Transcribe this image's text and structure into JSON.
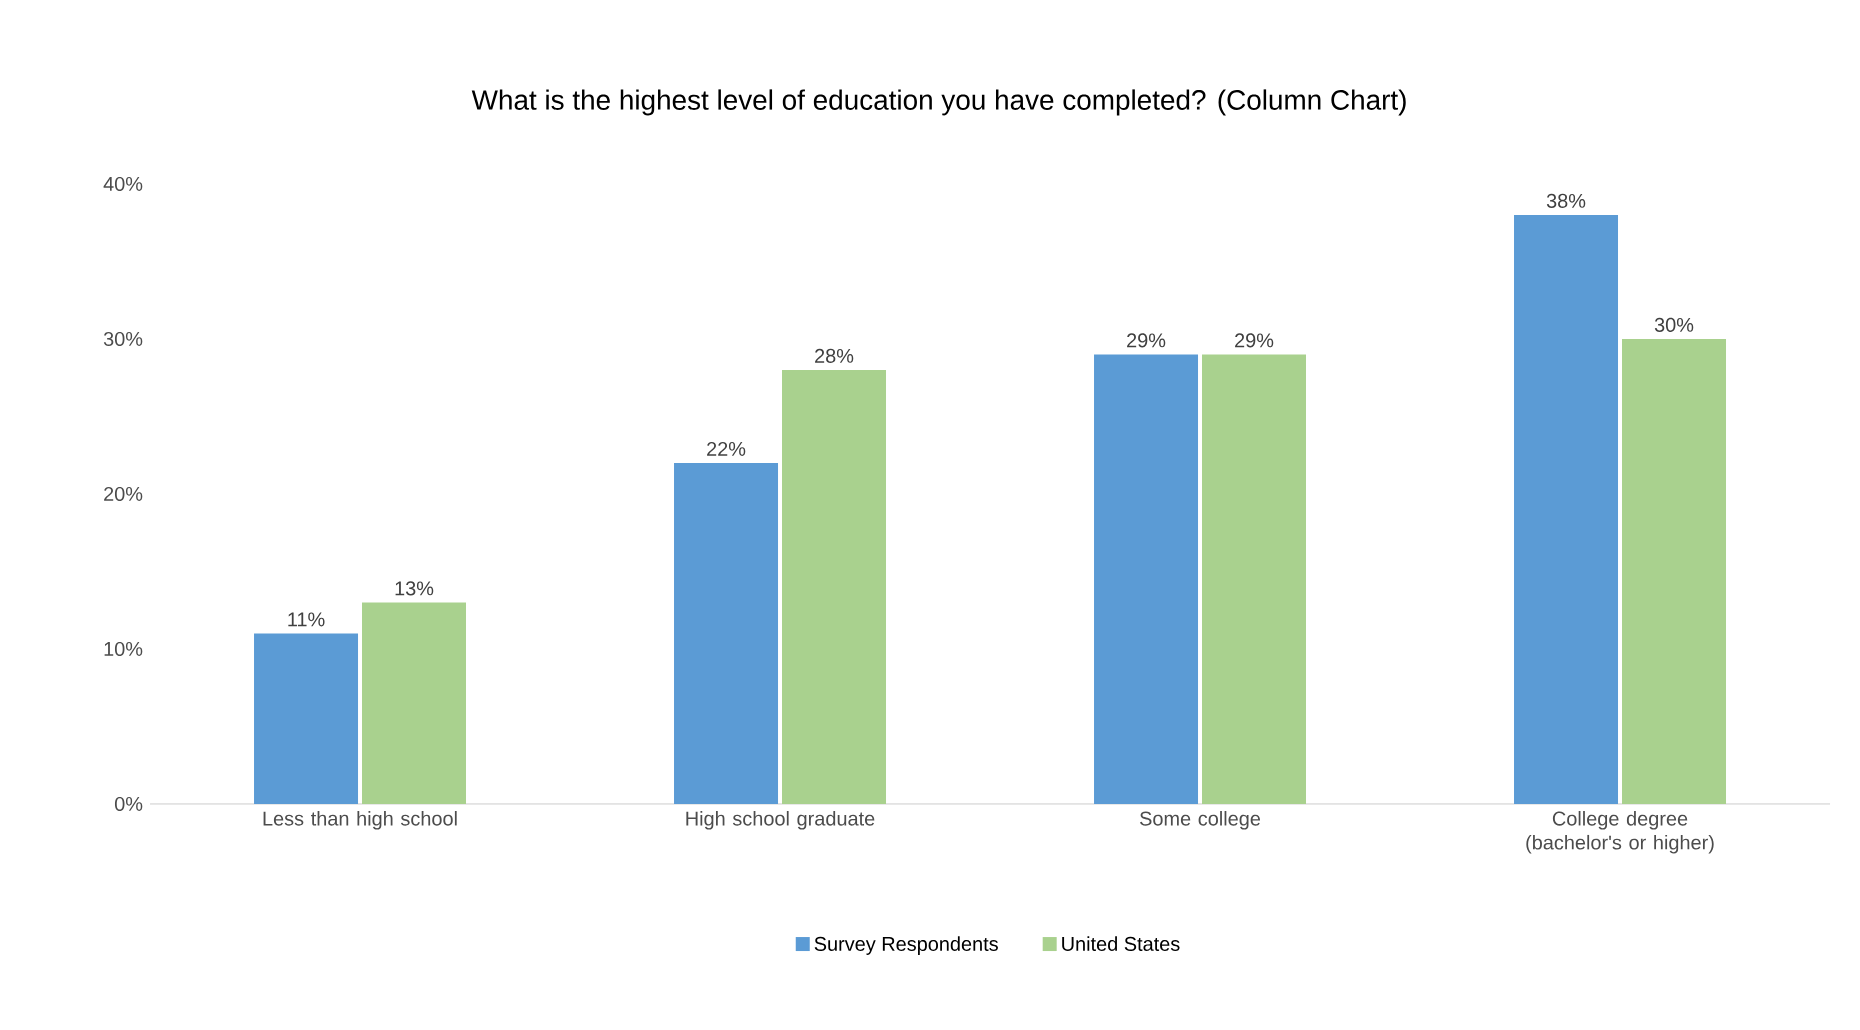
{
  "chart_data": {
    "type": "bar",
    "title": "What is the highest level of education you have completed? (Column Chart)",
    "categories": [
      "Less than high school",
      "High school graduate",
      "Some college",
      "College degree (bachelor's or higher)"
    ],
    "series": [
      {
        "name": "Survey Respondents",
        "color": "#5b9bd5",
        "values": [
          11,
          22,
          29,
          38
        ],
        "value_labels": [
          "11%",
          "22%",
          "29%",
          "38%"
        ]
      },
      {
        "name": "United States",
        "color": "#a9d18e",
        "values": [
          13,
          28,
          29,
          30
        ],
        "value_labels": [
          "13%",
          "28%",
          "29%",
          "30%"
        ]
      }
    ],
    "ylim": [
      0,
      40
    ],
    "yticks": [
      {
        "value": 0,
        "label": "0%"
      },
      {
        "value": 10,
        "label": "10%"
      },
      {
        "value": 20,
        "label": "20%"
      },
      {
        "value": 30,
        "label": "30%"
      },
      {
        "value": 40,
        "label": "40%"
      }
    ],
    "legend": "bottom"
  }
}
